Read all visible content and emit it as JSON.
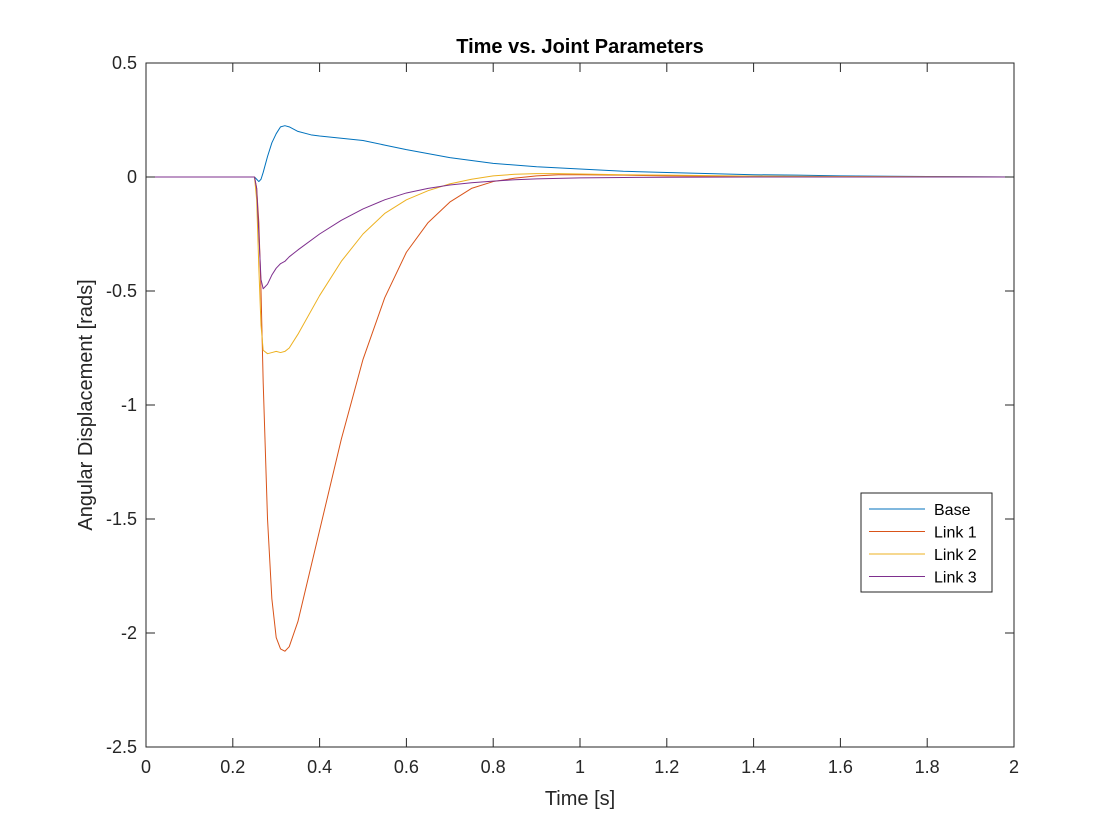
{
  "chart_data": {
    "type": "line",
    "title": "Time vs. Joint Parameters",
    "xlabel": "Time [s]",
    "ylabel": "Angular Displacement [rads]",
    "xlim": [
      0,
      2
    ],
    "ylim": [
      -2.5,
      0.5
    ],
    "xticks": [
      "0",
      "0.2",
      "0.4",
      "0.6",
      "0.8",
      "1",
      "1.2",
      "1.4",
      "1.6",
      "1.8",
      "2"
    ],
    "yticks": [
      "0.5",
      "0",
      "-0.5",
      "-1",
      "-1.5",
      "-2",
      "-2.5"
    ],
    "grid": false,
    "legend_position": "right-middle",
    "series": [
      {
        "name": "Base",
        "color": "#0072BD",
        "x": [
          0,
          0.25,
          0.255,
          0.26,
          0.265,
          0.27,
          0.28,
          0.29,
          0.3,
          0.31,
          0.32,
          0.33,
          0.35,
          0.38,
          0.4,
          0.45,
          0.5,
          0.55,
          0.6,
          0.7,
          0.8,
          0.9,
          1.0,
          1.1,
          1.2,
          1.3,
          1.4,
          1.5,
          1.6,
          1.8,
          2.0
        ],
        "y": [
          0,
          0,
          -0.01,
          -0.02,
          -0.01,
          0.02,
          0.09,
          0.15,
          0.19,
          0.22,
          0.225,
          0.22,
          0.2,
          0.185,
          0.18,
          0.17,
          0.16,
          0.14,
          0.12,
          0.085,
          0.06,
          0.045,
          0.035,
          0.025,
          0.02,
          0.015,
          0.01,
          0.008,
          0.005,
          0.002,
          0.0
        ]
      },
      {
        "name": "Link 1",
        "color": "#D95319",
        "x": [
          0,
          0.25,
          0.255,
          0.26,
          0.265,
          0.27,
          0.28,
          0.29,
          0.3,
          0.31,
          0.32,
          0.33,
          0.35,
          0.4,
          0.45,
          0.5,
          0.55,
          0.6,
          0.65,
          0.7,
          0.75,
          0.8,
          0.85,
          0.9,
          0.95,
          1.0,
          1.1,
          1.2,
          1.4,
          1.6,
          2.0
        ],
        "y": [
          0,
          0,
          -0.05,
          -0.2,
          -0.5,
          -0.9,
          -1.5,
          -1.85,
          -2.02,
          -2.07,
          -2.08,
          -2.06,
          -1.95,
          -1.55,
          -1.15,
          -0.8,
          -0.53,
          -0.33,
          -0.2,
          -0.11,
          -0.05,
          -0.02,
          -0.005,
          0.005,
          0.01,
          0.01,
          0.008,
          0.005,
          0.003,
          0.001,
          0.0
        ]
      },
      {
        "name": "Link 2",
        "color": "#EDB120",
        "x": [
          0,
          0.25,
          0.255,
          0.26,
          0.265,
          0.27,
          0.28,
          0.29,
          0.3,
          0.31,
          0.32,
          0.33,
          0.35,
          0.4,
          0.45,
          0.5,
          0.55,
          0.6,
          0.65,
          0.7,
          0.75,
          0.8,
          0.85,
          0.9,
          0.95,
          1.0,
          1.1,
          1.2,
          1.4,
          1.6,
          2.0
        ],
        "y": [
          0,
          0,
          -0.1,
          -0.4,
          -0.65,
          -0.76,
          -0.775,
          -0.77,
          -0.765,
          -0.77,
          -0.765,
          -0.75,
          -0.69,
          -0.52,
          -0.37,
          -0.25,
          -0.16,
          -0.1,
          -0.06,
          -0.03,
          -0.01,
          0.005,
          0.012,
          0.015,
          0.015,
          0.013,
          0.01,
          0.008,
          0.004,
          0.002,
          0.0
        ]
      },
      {
        "name": "Link 3",
        "color": "#7E2F8E",
        "x": [
          0,
          0.25,
          0.255,
          0.26,
          0.265,
          0.27,
          0.28,
          0.29,
          0.3,
          0.31,
          0.32,
          0.33,
          0.35,
          0.4,
          0.45,
          0.5,
          0.55,
          0.6,
          0.65,
          0.7,
          0.75,
          0.8,
          0.85,
          0.9,
          1.0,
          1.1,
          1.2,
          1.4,
          1.6,
          2.0
        ],
        "y": [
          0,
          0,
          -0.05,
          -0.25,
          -0.45,
          -0.49,
          -0.47,
          -0.43,
          -0.4,
          -0.38,
          -0.37,
          -0.35,
          -0.32,
          -0.25,
          -0.19,
          -0.14,
          -0.1,
          -0.07,
          -0.05,
          -0.035,
          -0.025,
          -0.018,
          -0.012,
          -0.008,
          -0.004,
          -0.002,
          -0.001,
          0.0,
          0.0,
          0.0
        ]
      }
    ]
  }
}
